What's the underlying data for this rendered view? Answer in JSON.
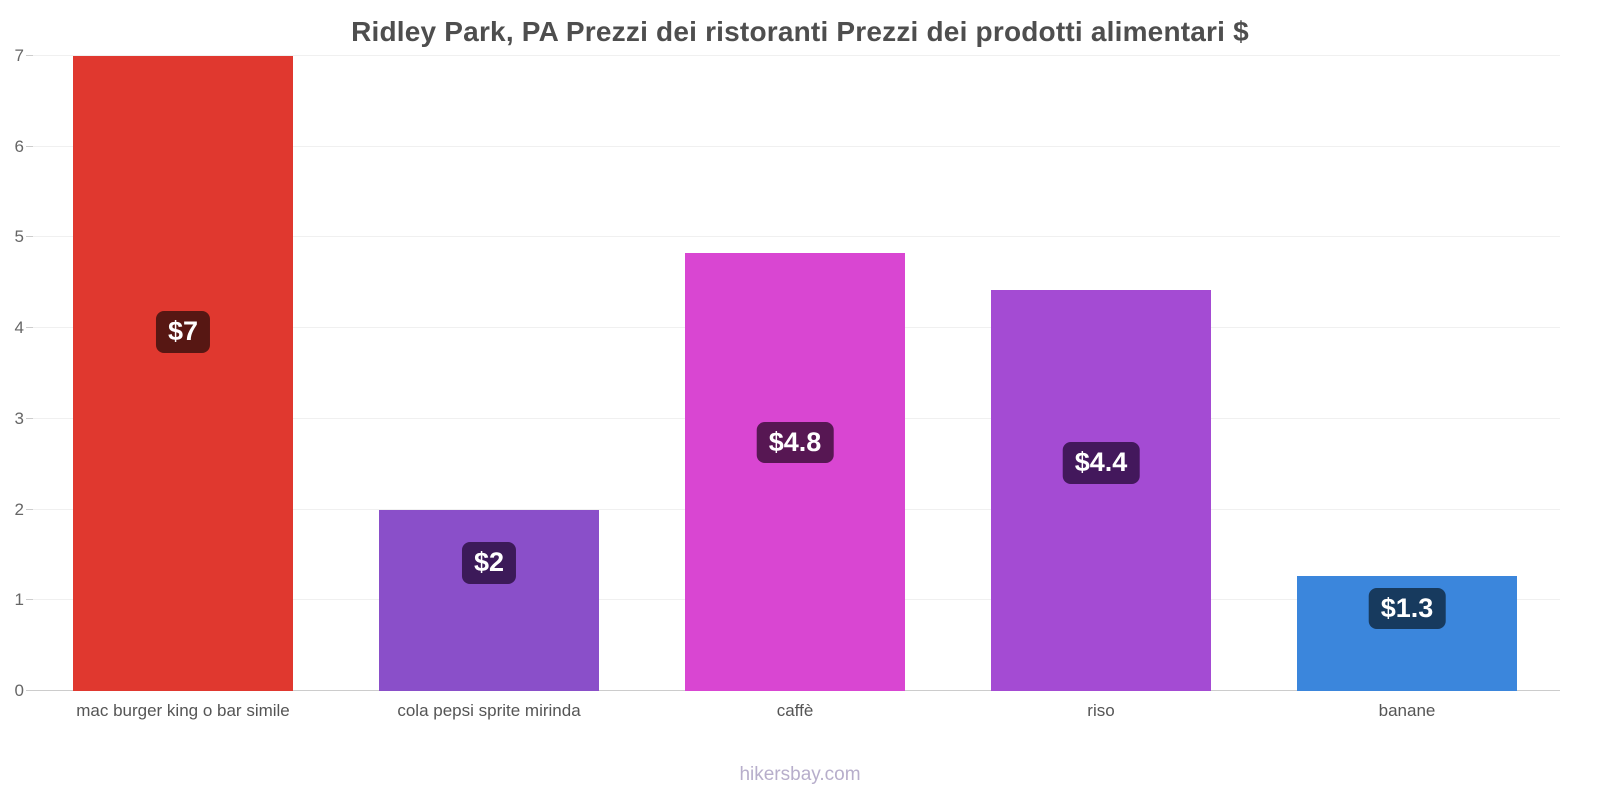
{
  "title": "Ridley Park, PA Prezzi dei ristoranti Prezzi dei prodotti alimentari $",
  "footer": "hikersbay.com",
  "chart_data": {
    "type": "bar",
    "title": "Ridley Park, PA Prezzi dei ristoranti Prezzi dei prodotti alimentari $",
    "categories": [
      "mac burger king o bar simile",
      "cola pepsi sprite mirinda",
      "caffè",
      "riso",
      "banane"
    ],
    "values": [
      7,
      2,
      4.83,
      4.42,
      1.27
    ],
    "value_labels": [
      "$7",
      "$2",
      "$4.8",
      "$4.4",
      "$1.3"
    ],
    "bar_colors": [
      "#e0382f",
      "#8a4fc9",
      "#d946d2",
      "#a44bd3",
      "#3b86dc"
    ],
    "badge_colors": [
      "#571713",
      "#3c1a59",
      "#571753",
      "#43185c",
      "#173a5e"
    ],
    "xlabel": "",
    "ylabel": "",
    "ylim": [
      0,
      7
    ],
    "yticks": [
      0,
      1,
      2,
      3,
      4,
      5,
      6,
      7
    ],
    "grid": true,
    "legend": "none"
  }
}
